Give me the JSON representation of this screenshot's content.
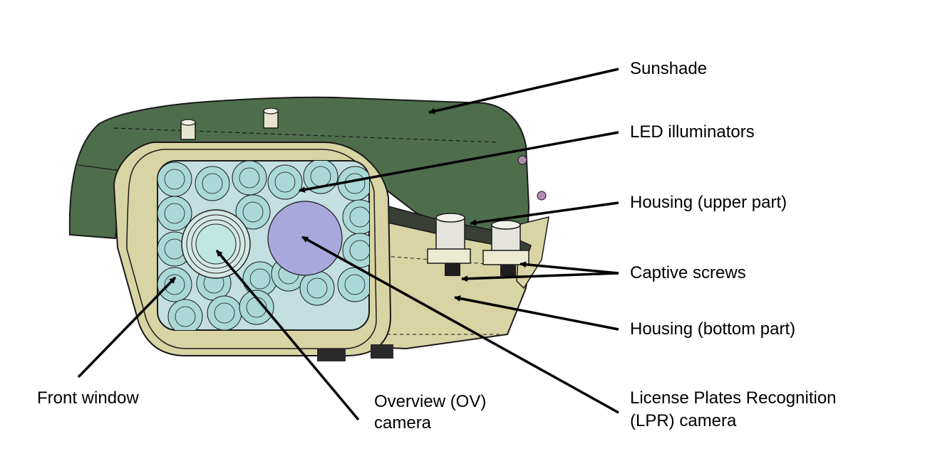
{
  "labels": {
    "sunshade": "Sunshade",
    "led_illuminators": "LED illuminators",
    "housing_upper": "Housing (upper part)",
    "captive_screws": "Captive screws",
    "housing_bottom": "Housing (bottom part)",
    "front_window": "Front window",
    "ov_camera_line1": "Overview (OV)",
    "ov_camera_line2": "camera",
    "lpr_camera_line1": "License Plates Recognition",
    "lpr_camera_line2": "(LPR) camera"
  },
  "colors": {
    "sunshade": "#4e6e4b",
    "housing": "#d8d4a4",
    "window": "#c3dfe0",
    "led": "#a9d8d6",
    "lpr_lens": "#a9a8dc",
    "ov_lens": "#bfe6e1",
    "outline": "#1a1a1a"
  }
}
